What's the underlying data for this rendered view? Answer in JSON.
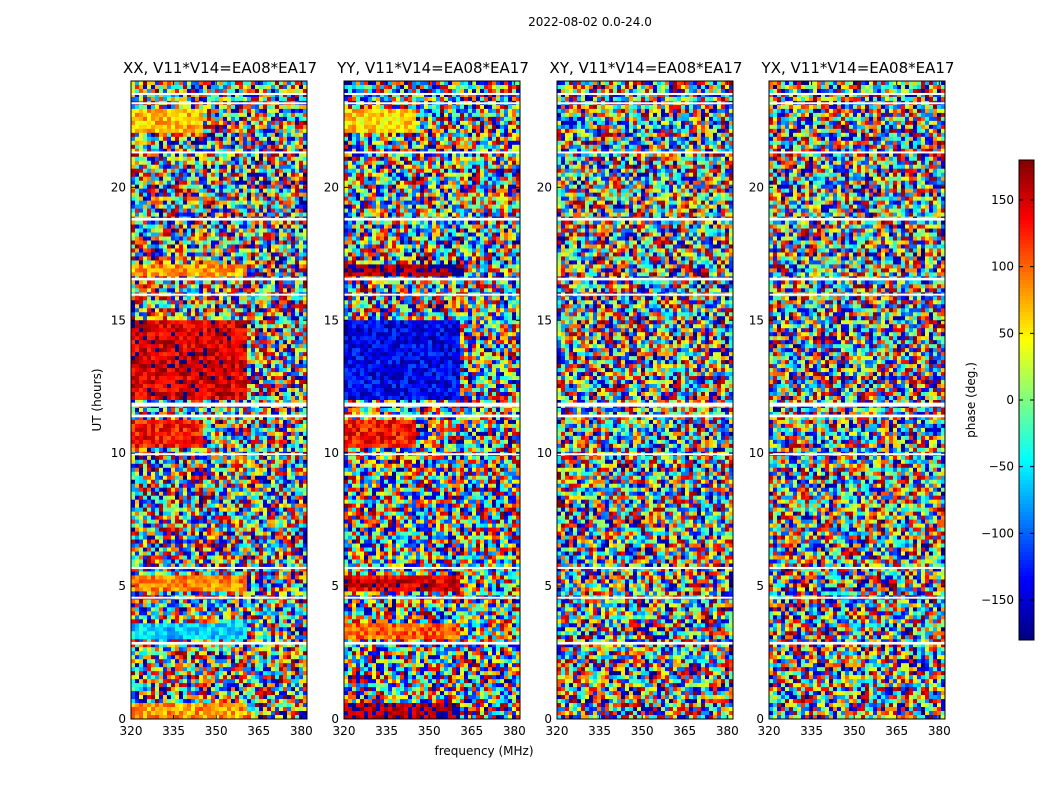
{
  "figure": {
    "suptitle": "2022-08-02 0.0-24.0"
  },
  "chart_data": {
    "type": "heatmap",
    "xlabel": "frequency (MHz)",
    "ylabel": "UT (hours)",
    "xlim": [
      320,
      382
    ],
    "ylim": [
      0,
      24
    ],
    "xticks": [
      320,
      335,
      350,
      365,
      380
    ],
    "yticks": [
      0,
      5,
      10,
      15,
      20
    ],
    "panels": [
      {
        "title": "XX, V11*V14=EA08*EA17"
      },
      {
        "title": "YY, V11*V14=EA08*EA17"
      },
      {
        "title": "XY, V11*V14=EA08*EA17"
      },
      {
        "title": "YX, V11*V14=EA08*EA17"
      }
    ],
    "colorbar": {
      "label": "phase (deg.)",
      "range": [
        -180,
        180
      ],
      "ticks": [
        150,
        100,
        50,
        0,
        -50,
        -100,
        -150
      ],
      "tick_labels": [
        "150",
        "100",
        "50",
        "0",
        "−50",
        "−100",
        "−150"
      ],
      "colormap": "jet"
    },
    "flagged_bands_hours": [
      [
        2.8,
        2.9
      ],
      [
        4.55,
        4.6
      ],
      [
        5.65,
        5.72
      ],
      [
        9.95,
        10.0
      ],
      [
        11.35,
        11.45
      ],
      [
        11.75,
        11.9
      ],
      [
        15.95,
        16.0
      ],
      [
        16.5,
        16.6
      ],
      [
        18.75,
        18.85
      ],
      [
        21.3,
        21.35
      ],
      [
        23.5,
        23.55
      ],
      [
        23.15,
        23.2
      ]
    ],
    "note_regions": [
      {
        "panels": [
          "XX",
          "YY"
        ],
        "ut": [
          12.0,
          15.0
        ],
        "freq": [
          320,
          361
        ],
        "mean_phase_deg": [
          150,
          -140
        ]
      },
      {
        "panels": [
          "XX",
          "YY"
        ],
        "ut": [
          10.2,
          11.3
        ],
        "freq": [
          320,
          345
        ],
        "mean_phase_deg": [
          130,
          130
        ]
      },
      {
        "panels": [
          "XX",
          "YY"
        ],
        "ut": [
          3.0,
          3.6
        ],
        "freq": [
          320,
          361
        ],
        "mean_phase_deg": [
          -60,
          100
        ]
      },
      {
        "panels": [
          "XX",
          "YY"
        ],
        "ut": [
          4.8,
          5.4
        ],
        "freq": [
          320,
          361
        ],
        "mean_phase_deg": [
          90,
          150
        ]
      },
      {
        "panels": [
          "XX",
          "YY"
        ],
        "ut": [
          16.7,
          17.1
        ],
        "freq": [
          320,
          361
        ],
        "mean_phase_deg": [
          80,
          170
        ]
      },
      {
        "panels": [
          "XX",
          "YY"
        ],
        "ut": [
          22.0,
          23.0
        ],
        "freq": [
          320,
          345
        ],
        "mean_phase_deg": [
          70,
          60
        ]
      },
      {
        "panels": [
          "XX",
          "YY"
        ],
        "ut": [
          0.0,
          0.6
        ],
        "freq": [
          320,
          361
        ],
        "mean_phase_deg": [
          80,
          170
        ]
      }
    ]
  }
}
